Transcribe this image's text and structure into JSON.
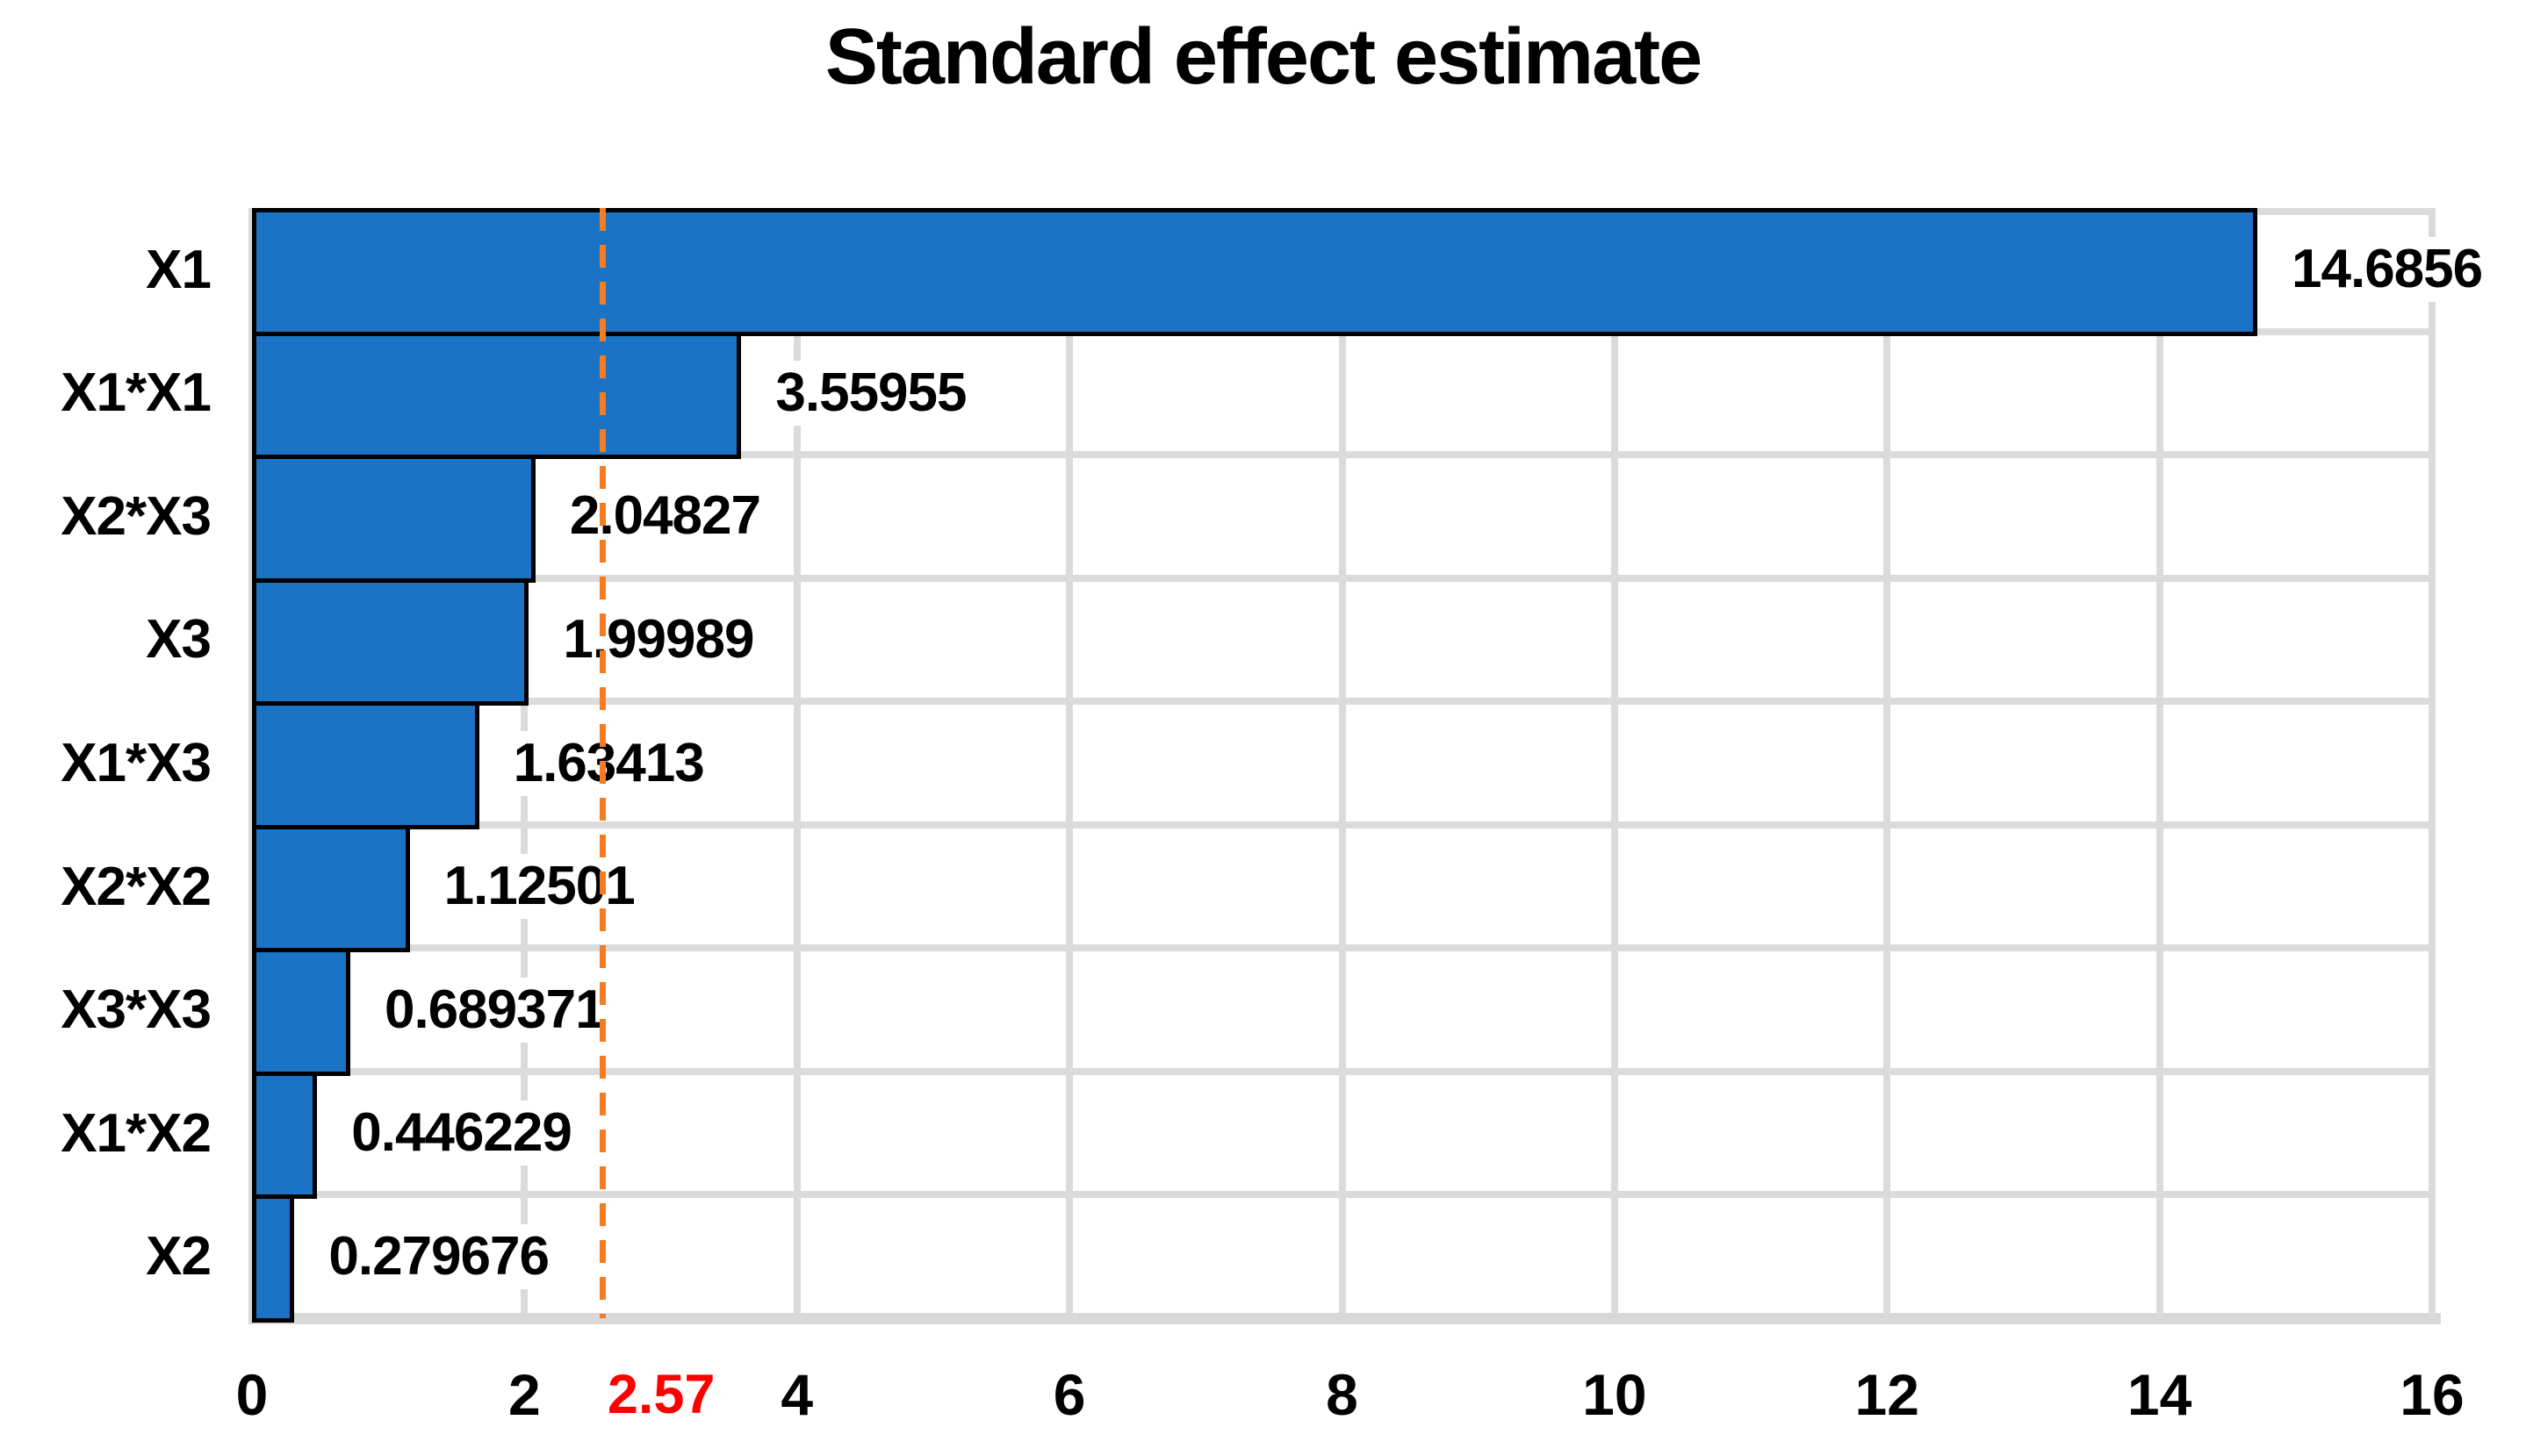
{
  "title": "Standard effect estimate",
  "chart_data": {
    "type": "bar",
    "orientation": "horizontal",
    "title": "Standard effect estimate",
    "categories": [
      "X1",
      "X1*X1",
      "X2*X3",
      "X3",
      "X1*X3",
      "X2*X2",
      "X3*X3",
      "X1*X2",
      "X2"
    ],
    "values": [
      14.6856,
      3.55955,
      2.04827,
      1.99989,
      1.63413,
      1.12501,
      0.689371,
      0.446229,
      0.279676
    ],
    "value_labels": [
      "14.6856",
      "3.55955",
      "2.04827",
      "1.99989",
      "1.63413",
      "1.12501",
      "0.689371",
      "0.446229",
      "0.279676"
    ],
    "xlabel": "",
    "ylabel": "",
    "xlim": [
      0,
      16
    ],
    "xticks": [
      0,
      2,
      4,
      6,
      8,
      10,
      12,
      14,
      16
    ],
    "grid": true,
    "legend": false,
    "threshold": {
      "value": 2.57,
      "label": "2.57",
      "line_style": "dashed",
      "line_color": "#f57d1f",
      "label_color": "#fe0000"
    },
    "colors": {
      "bar_fill": "#1b73c5",
      "bar_border": "#000000",
      "gridline": "#dbdbdb",
      "axis_line": "#d8d8d8",
      "text": "#000000",
      "background": "#ffffff"
    }
  }
}
